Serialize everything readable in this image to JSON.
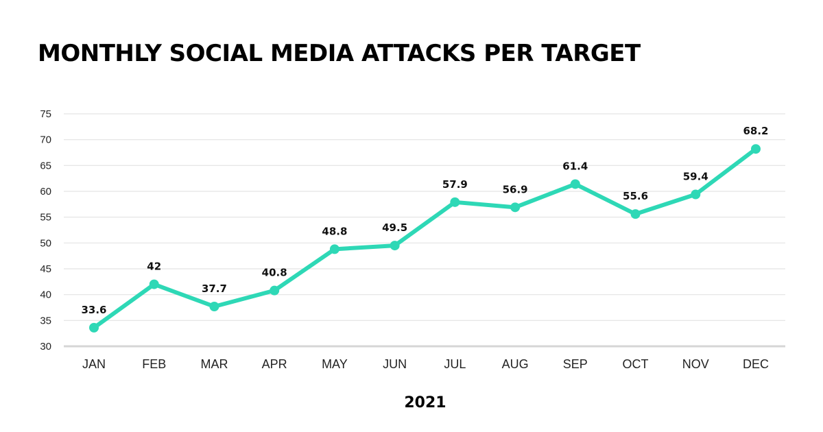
{
  "chart_data": {
    "type": "line",
    "title": "MONTHLY SOCIAL MEDIA ATTACKS PER TARGET",
    "xlabel": "2021",
    "ylabel": "",
    "categories": [
      "JAN",
      "FEB",
      "MAR",
      "APR",
      "MAY",
      "JUN",
      "JUL",
      "AUG",
      "SEP",
      "OCT",
      "NOV",
      "DEC"
    ],
    "series": [
      {
        "values": [
          33.6,
          42,
          37.7,
          40.8,
          48.8,
          49.5,
          57.9,
          56.9,
          61.4,
          55.6,
          59.4,
          68.2
        ],
        "color": "#2ed8b6",
        "data_labels": [
          "33.6",
          "42",
          "37.7",
          "40.8",
          "48.8",
          "49.5",
          "57.9",
          "56.9",
          "61.4",
          "55.6",
          "59.4",
          "68.2"
        ]
      }
    ],
    "ylim": [
      30,
      75
    ],
    "yticks": [
      30,
      35,
      40,
      45,
      50,
      55,
      60,
      65,
      70,
      75
    ],
    "grid": true,
    "legend": "none"
  },
  "colors": {
    "line": "#2ed8b6",
    "grid": "#e3e3e3",
    "text": "#111111"
  }
}
